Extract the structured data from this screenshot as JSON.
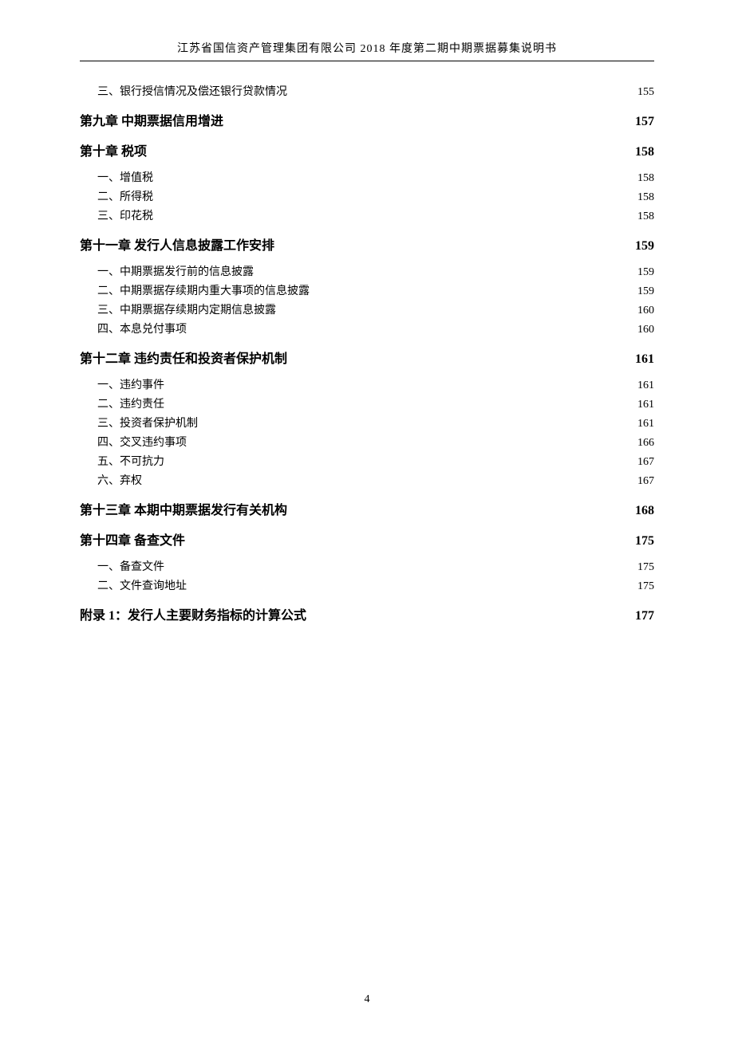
{
  "header": "江苏省国信资产管理集团有限公司 2018 年度第二期中期票据募集说明书",
  "page_number": "4",
  "toc": [
    {
      "level": "sub",
      "label": "三、银行授信情况及偿还银行贷款情况",
      "page": "155"
    },
    {
      "level": "chapter",
      "label": "第九章  中期票据信用增进",
      "page": "157"
    },
    {
      "level": "chapter",
      "label": "第十章  税项",
      "page": "158"
    },
    {
      "level": "sub",
      "label": "一、增值税",
      "page": "158"
    },
    {
      "level": "sub",
      "label": "二、所得税",
      "page": "158"
    },
    {
      "level": "sub",
      "label": "三、印花税",
      "page": "158"
    },
    {
      "level": "chapter",
      "label": "第十一章  发行人信息披露工作安排",
      "page": "159"
    },
    {
      "level": "sub",
      "label": "一、中期票据发行前的信息披露",
      "page": "159"
    },
    {
      "level": "sub",
      "label": "二、中期票据存续期内重大事项的信息披露",
      "page": "159"
    },
    {
      "level": "sub",
      "label": "三、中期票据存续期内定期信息披露",
      "page": "160"
    },
    {
      "level": "sub",
      "label": "四、本息兑付事项",
      "page": "160"
    },
    {
      "level": "chapter",
      "label": "第十二章  违约责任和投资者保护机制",
      "page": "161"
    },
    {
      "level": "sub",
      "label": "一、违约事件",
      "page": "161"
    },
    {
      "level": "sub",
      "label": "二、违约责任",
      "page": "161"
    },
    {
      "level": "sub",
      "label": "三、投资者保护机制",
      "page": "161"
    },
    {
      "level": "sub",
      "label": "四、交叉违约事项",
      "page": "166"
    },
    {
      "level": "sub",
      "label": "五、不可抗力",
      "page": "167"
    },
    {
      "level": "sub",
      "label": "六、弃权",
      "page": "167"
    },
    {
      "level": "chapter",
      "label": "第十三章  本期中期票据发行有关机构",
      "page": "168"
    },
    {
      "level": "chapter",
      "label": "第十四章  备查文件",
      "page": "175"
    },
    {
      "level": "sub",
      "label": "一、备查文件",
      "page": "175"
    },
    {
      "level": "sub",
      "label": "二、文件查询地址",
      "page": "175"
    },
    {
      "level": "chapter",
      "label": "附录 1：发行人主要财务指标的计算公式",
      "page": "177"
    }
  ]
}
